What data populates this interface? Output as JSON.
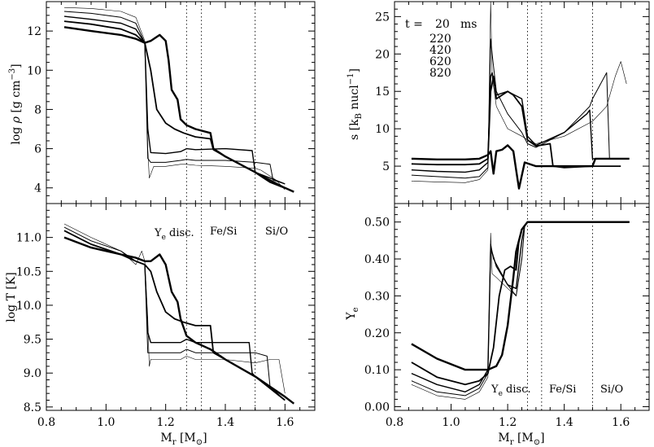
{
  "figure": {
    "time_legend": {
      "prefix": "t =",
      "unit": "ms",
      "times": [
        "20",
        "220",
        "420",
        "620",
        "820"
      ]
    },
    "shell_labels": {
      "ye_disc": "Y",
      "ye_disc_sub": "e",
      "ye_disc_suffix": " disc.",
      "fe_si": "Fe/Si",
      "si_o": "Si/O"
    },
    "boundaries_msun": [
      1.27,
      1.32,
      1.5
    ]
  },
  "chart_data": [
    {
      "id": "density",
      "type": "line",
      "xlabel": "",
      "ylabel": "log ρ [g cm⁻³]",
      "xlim": [
        0.8,
        1.7
      ],
      "ylim": [
        3.2,
        13.5
      ],
      "yticks": [
        4,
        6,
        8,
        10,
        12
      ],
      "xticks": [
        0.8,
        1.0,
        1.2,
        1.4,
        1.6
      ],
      "series": [
        {
          "t": "20",
          "x": [
            0.86,
            0.95,
            1.05,
            1.1,
            1.13,
            1.14,
            1.145,
            1.16,
            1.2,
            1.25,
            1.27,
            1.3,
            1.4,
            1.5,
            1.52,
            1.57,
            1.6
          ],
          "y": [
            13.2,
            13.15,
            13.0,
            12.7,
            11.5,
            6.0,
            4.5,
            5.1,
            5.1,
            5.2,
            5.2,
            5.15,
            5.1,
            5.0,
            4.9,
            4.4,
            3.9
          ]
        },
        {
          "t": "220",
          "x": [
            0.86,
            0.95,
            1.05,
            1.1,
            1.13,
            1.14,
            1.15,
            1.2,
            1.25,
            1.27,
            1.3,
            1.4,
            1.5,
            1.55,
            1.56,
            1.6
          ],
          "y": [
            13.0,
            12.9,
            12.7,
            12.4,
            11.4,
            5.5,
            5.3,
            5.3,
            5.4,
            5.45,
            5.4,
            5.4,
            5.3,
            5.2,
            4.4,
            4.2
          ]
        },
        {
          "t": "420",
          "x": [
            0.86,
            0.95,
            1.05,
            1.1,
            1.13,
            1.14,
            1.15,
            1.2,
            1.25,
            1.27,
            1.3,
            1.4,
            1.49,
            1.5,
            1.55,
            1.6
          ],
          "y": [
            12.75,
            12.6,
            12.4,
            12.1,
            11.4,
            7.0,
            5.8,
            5.75,
            5.85,
            6.0,
            5.95,
            6.0,
            5.9,
            4.8,
            4.5,
            4.2
          ]
        },
        {
          "t": "620",
          "x": [
            0.86,
            0.95,
            1.05,
            1.1,
            1.13,
            1.15,
            1.17,
            1.2,
            1.23,
            1.26,
            1.3,
            1.35,
            1.36,
            1.4,
            1.5,
            1.55,
            1.6
          ],
          "y": [
            12.5,
            12.35,
            12.1,
            11.8,
            11.4,
            10.0,
            8.0,
            7.3,
            7.0,
            6.8,
            6.6,
            6.5,
            5.95,
            5.6,
            4.8,
            4.4,
            4.0
          ]
        },
        {
          "t": "820",
          "x": [
            0.86,
            0.95,
            1.05,
            1.1,
            1.13,
            1.15,
            1.18,
            1.2,
            1.21,
            1.22,
            1.24,
            1.25,
            1.27,
            1.3,
            1.35,
            1.36,
            1.4,
            1.5,
            1.55,
            1.6,
            1.63
          ],
          "y": [
            12.2,
            12.0,
            11.8,
            11.6,
            11.4,
            11.5,
            11.8,
            11.5,
            10.5,
            9.0,
            8.5,
            7.5,
            7.2,
            7.0,
            6.8,
            6.0,
            5.6,
            4.8,
            4.3,
            4.0,
            3.8
          ]
        }
      ]
    },
    {
      "id": "entropy",
      "type": "line",
      "xlabel": "",
      "ylabel": "s [k_B nucl⁻¹]",
      "xlim": [
        0.8,
        1.7
      ],
      "ylim": [
        0,
        27
      ],
      "yticks": [
        5,
        10,
        15,
        20,
        25
      ],
      "xticks": [
        0.8,
        1.0,
        1.2,
        1.4,
        1.6
      ],
      "series": [
        {
          "t": "20",
          "x": [
            0.86,
            0.95,
            1.05,
            1.1,
            1.13,
            1.14,
            1.145,
            1.16,
            1.2,
            1.25,
            1.27,
            1.3,
            1.4,
            1.5,
            1.55,
            1.58,
            1.6,
            1.62
          ],
          "y": [
            3.0,
            2.9,
            2.8,
            3.2,
            4.5,
            27.0,
            17.0,
            13.0,
            10.0,
            9.0,
            8.5,
            8.0,
            9.0,
            11.0,
            13.0,
            17.0,
            19.0,
            16.0
          ]
        },
        {
          "t": "220",
          "x": [
            0.86,
            0.95,
            1.05,
            1.1,
            1.13,
            1.14,
            1.145,
            1.16,
            1.2,
            1.25,
            1.27,
            1.3,
            1.4,
            1.49,
            1.5,
            1.55,
            1.56,
            1.6
          ],
          "y": [
            3.8,
            3.6,
            3.4,
            3.6,
            4.8,
            22.0,
            20.0,
            15.0,
            12.0,
            9.5,
            8.0,
            7.5,
            9.5,
            13.0,
            14.0,
            17.5,
            6.0,
            6.0
          ]
        },
        {
          "t": "420",
          "x": [
            0.86,
            0.95,
            1.05,
            1.1,
            1.13,
            1.14,
            1.145,
            1.16,
            1.2,
            1.25,
            1.27,
            1.3,
            1.4,
            1.48,
            1.49,
            1.5,
            1.6
          ],
          "y": [
            4.5,
            4.3,
            4.2,
            4.5,
            5.5,
            17.0,
            17.5,
            14.5,
            15.0,
            14.0,
            9.0,
            7.8,
            9.5,
            12.0,
            12.5,
            6.0,
            6.0
          ]
        },
        {
          "t": "620",
          "x": [
            0.86,
            0.95,
            1.05,
            1.1,
            1.13,
            1.14,
            1.15,
            1.16,
            1.2,
            1.22,
            1.25,
            1.27,
            1.3,
            1.35,
            1.36,
            1.4,
            1.5,
            1.6
          ],
          "y": [
            5.3,
            5.2,
            5.2,
            5.3,
            6.0,
            15.0,
            17.0,
            14.0,
            15.0,
            14.5,
            13.0,
            8.5,
            7.7,
            8.0,
            5.0,
            4.8,
            5.0,
            5.0
          ]
        },
        {
          "t": "820",
          "x": [
            0.86,
            0.95,
            1.05,
            1.1,
            1.13,
            1.14,
            1.15,
            1.16,
            1.18,
            1.2,
            1.22,
            1.23,
            1.24,
            1.26,
            1.3,
            1.4,
            1.5,
            1.51,
            1.6,
            1.63
          ],
          "y": [
            6.0,
            5.9,
            5.9,
            6.0,
            6.5,
            7.0,
            4.0,
            7.0,
            7.2,
            7.8,
            7.0,
            4.5,
            2.0,
            5.5,
            5.0,
            5.0,
            5.0,
            6.0,
            6.0,
            6.0
          ]
        }
      ]
    },
    {
      "id": "temperature",
      "type": "line",
      "xlabel": "M_r [M_⊙]",
      "ylabel": "log T [K]",
      "xlim": [
        0.8,
        1.7
      ],
      "ylim": [
        8.45,
        11.5
      ],
      "yticks": [
        8.5,
        9.0,
        9.5,
        10.0,
        10.5,
        11.0
      ],
      "xticks": [
        0.8,
        1.0,
        1.2,
        1.4,
        1.6
      ],
      "series": [
        {
          "t": "20",
          "x": [
            0.86,
            0.95,
            1.05,
            1.1,
            1.12,
            1.13,
            1.14,
            1.145,
            1.15,
            1.2,
            1.25,
            1.27,
            1.3,
            1.4,
            1.5,
            1.55,
            1.58,
            1.6
          ],
          "y": [
            11.2,
            11.0,
            10.8,
            10.6,
            10.8,
            10.65,
            9.8,
            9.1,
            9.2,
            9.2,
            9.2,
            9.25,
            9.2,
            9.2,
            9.15,
            9.2,
            9.2,
            8.7
          ]
        },
        {
          "t": "220",
          "x": [
            0.86,
            0.95,
            1.05,
            1.1,
            1.13,
            1.14,
            1.15,
            1.2,
            1.25,
            1.27,
            1.3,
            1.4,
            1.5,
            1.54,
            1.55,
            1.6
          ],
          "y": [
            11.15,
            10.95,
            10.8,
            10.65,
            10.6,
            9.3,
            9.3,
            9.3,
            9.3,
            9.35,
            9.3,
            9.3,
            9.3,
            9.25,
            8.8,
            8.6
          ]
        },
        {
          "t": "420",
          "x": [
            0.86,
            0.95,
            1.05,
            1.1,
            1.13,
            1.14,
            1.15,
            1.2,
            1.25,
            1.27,
            1.3,
            1.4,
            1.48,
            1.49,
            1.5,
            1.6
          ],
          "y": [
            11.1,
            10.9,
            10.75,
            10.65,
            10.6,
            9.6,
            9.45,
            9.45,
            9.45,
            9.5,
            9.45,
            9.45,
            9.45,
            9.0,
            8.95,
            8.6
          ]
        },
        {
          "t": "620",
          "x": [
            0.86,
            0.95,
            1.05,
            1.1,
            1.13,
            1.15,
            1.17,
            1.2,
            1.23,
            1.26,
            1.3,
            1.35,
            1.36,
            1.4,
            1.5,
            1.6
          ],
          "y": [
            11.1,
            10.9,
            10.75,
            10.65,
            10.6,
            10.5,
            10.2,
            9.9,
            9.8,
            9.75,
            9.7,
            9.7,
            9.3,
            9.2,
            8.95,
            8.6
          ]
        },
        {
          "t": "820",
          "x": [
            0.86,
            0.95,
            1.05,
            1.1,
            1.13,
            1.15,
            1.18,
            1.2,
            1.22,
            1.24,
            1.25,
            1.27,
            1.3,
            1.35,
            1.4,
            1.5,
            1.55,
            1.6,
            1.63
          ],
          "y": [
            11.0,
            10.85,
            10.75,
            10.7,
            10.65,
            10.65,
            10.75,
            10.6,
            10.2,
            10.05,
            9.8,
            9.55,
            9.45,
            9.35,
            9.2,
            8.95,
            8.8,
            8.65,
            8.55
          ]
        }
      ]
    },
    {
      "id": "electron_fraction",
      "type": "line",
      "xlabel": "M_r [M_⊙]",
      "ylabel": "Y_e",
      "xlim": [
        0.8,
        1.7
      ],
      "ylim": [
        -0.01,
        0.55
      ],
      "yticks": [
        0.0,
        0.1,
        0.2,
        0.3,
        0.4,
        0.5
      ],
      "xticks": [
        0.8,
        1.0,
        1.2,
        1.4,
        1.6
      ],
      "series": [
        {
          "t": "20",
          "x": [
            0.86,
            0.95,
            1.05,
            1.1,
            1.13,
            1.14,
            1.145,
            1.16,
            1.2,
            1.23,
            1.25,
            1.26,
            1.27,
            1.4,
            1.6,
            1.63
          ],
          "y": [
            0.06,
            0.03,
            0.02,
            0.04,
            0.08,
            0.47,
            0.36,
            0.35,
            0.32,
            0.3,
            0.4,
            0.49,
            0.5,
            0.5,
            0.5,
            0.5
          ]
        },
        {
          "t": "220",
          "x": [
            0.86,
            0.95,
            1.05,
            1.1,
            1.13,
            1.14,
            1.15,
            1.2,
            1.23,
            1.25,
            1.26,
            1.27,
            1.4,
            1.6,
            1.63
          ],
          "y": [
            0.07,
            0.04,
            0.03,
            0.05,
            0.09,
            0.44,
            0.4,
            0.33,
            0.3,
            0.4,
            0.49,
            0.5,
            0.5,
            0.5,
            0.5
          ]
        },
        {
          "t": "420",
          "x": [
            0.86,
            0.95,
            1.05,
            1.1,
            1.13,
            1.14,
            1.16,
            1.2,
            1.23,
            1.25,
            1.26,
            1.27,
            1.4,
            1.6,
            1.63
          ],
          "y": [
            0.09,
            0.06,
            0.04,
            0.06,
            0.1,
            0.43,
            0.38,
            0.33,
            0.32,
            0.45,
            0.49,
            0.5,
            0.5,
            0.5,
            0.5
          ]
        },
        {
          "t": "620",
          "x": [
            0.86,
            0.95,
            1.05,
            1.1,
            1.13,
            1.15,
            1.17,
            1.19,
            1.21,
            1.23,
            1.24,
            1.25,
            1.26,
            1.27,
            1.4,
            1.6,
            1.63
          ],
          "y": [
            0.12,
            0.08,
            0.06,
            0.07,
            0.09,
            0.16,
            0.3,
            0.37,
            0.38,
            0.37,
            0.45,
            0.48,
            0.49,
            0.5,
            0.5,
            0.5,
            0.5
          ]
        },
        {
          "t": "820",
          "x": [
            0.86,
            0.95,
            1.05,
            1.1,
            1.13,
            1.16,
            1.18,
            1.2,
            1.22,
            1.23,
            1.25,
            1.26,
            1.27,
            1.4,
            1.6,
            1.63
          ],
          "y": [
            0.17,
            0.13,
            0.1,
            0.1,
            0.1,
            0.11,
            0.14,
            0.22,
            0.35,
            0.42,
            0.48,
            0.49,
            0.5,
            0.5,
            0.5,
            0.5
          ]
        }
      ]
    }
  ]
}
